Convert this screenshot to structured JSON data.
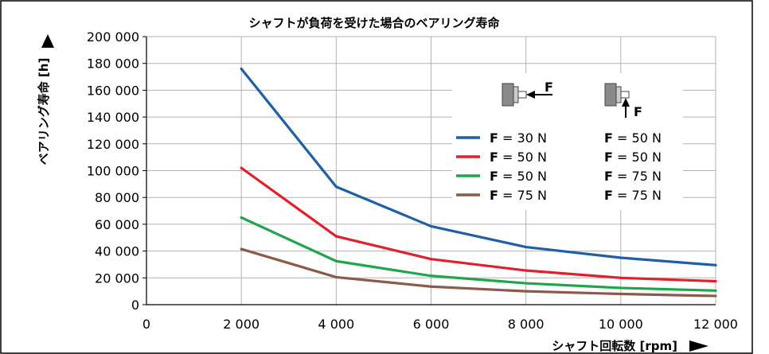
{
  "chart_data": {
    "type": "line",
    "title": "シャフトが負荷を受けた場合のベアリング寿命",
    "ylabel": "ベアリング寿命 [h]",
    "xlabel": "シャフト回転数 [rpm]",
    "x_zero_label": "0",
    "xlim": [
      0,
      12000
    ],
    "ylim": [
      0,
      200000
    ],
    "x_ticks": [
      "2 000",
      "4 000",
      "6 000",
      "8 000",
      "10 000",
      "12 000"
    ],
    "x_tick_values": [
      2000,
      4000,
      6000,
      8000,
      10000,
      12000
    ],
    "y_ticks": [
      "0",
      "20 000",
      "40 000",
      "60 000",
      "80 000",
      "100 000",
      "120 000",
      "140 000",
      "160 000",
      "180 000",
      "200 000"
    ],
    "y_tick_values": [
      0,
      20000,
      40000,
      60000,
      80000,
      100000,
      120000,
      140000,
      160000,
      180000,
      200000
    ],
    "grid": true,
    "legend_position": "top-right",
    "legend_icons": [
      "axial-load-icon",
      "radial-load-icon"
    ],
    "legend_force_symbol": "F",
    "x": [
      2000,
      4000,
      6000,
      8000,
      10000,
      12000
    ],
    "series": [
      {
        "color": "#1f5fa6",
        "axial": "= 30 N",
        "radial": "= 50 N",
        "values": [
          176000,
          88000,
          58500,
          43000,
          35000,
          29500
        ]
      },
      {
        "color": "#e0202a",
        "axial": "= 50 N",
        "radial": "= 50 N",
        "values": [
          102000,
          51000,
          34000,
          25500,
          20000,
          17500
        ]
      },
      {
        "color": "#1fa64a",
        "axial": "= 50 N",
        "radial": "= 75 N",
        "values": [
          65000,
          32500,
          21500,
          16000,
          12500,
          10500
        ]
      },
      {
        "color": "#8c5a4a",
        "axial": "= 75 N",
        "radial": "= 75 N",
        "values": [
          41500,
          20500,
          13500,
          10000,
          8000,
          6500
        ]
      }
    ]
  }
}
